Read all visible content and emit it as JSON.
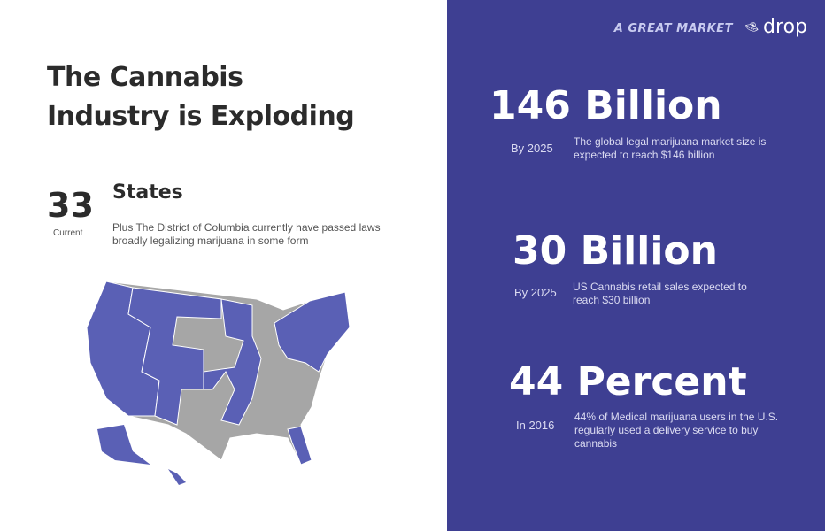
{
  "left": {
    "title_line1": "The Cannabis",
    "title_line2": "Industry is Exploding",
    "states_count": "33",
    "states_count_label": "Current",
    "states_heading": "States",
    "states_description": "Plus The District of Columbia currently have passed laws broadly legalizing marijuana in some form"
  },
  "right": {
    "tagline": "A GREAT MARKET",
    "brand": "drop",
    "stats": [
      {
        "value": "146",
        "unit": "Billion",
        "when": "By 2025",
        "description": "The global legal marijuana market size is expected to reach $146 billion"
      },
      {
        "value": "30",
        "unit": "Billion",
        "when": "By 2025",
        "description": "US Cannabis retail sales expected to reach $30 billion"
      },
      {
        "value": "44",
        "unit": "Percent",
        "when": "In 2016",
        "description": "44% of Medical marijuana users in the U.S. regularly used a delivery service to buy cannabis"
      }
    ]
  },
  "colors": {
    "panel": "#3e3f92",
    "legal": "#5a60b5",
    "not_legal": "#a6a6a6"
  }
}
